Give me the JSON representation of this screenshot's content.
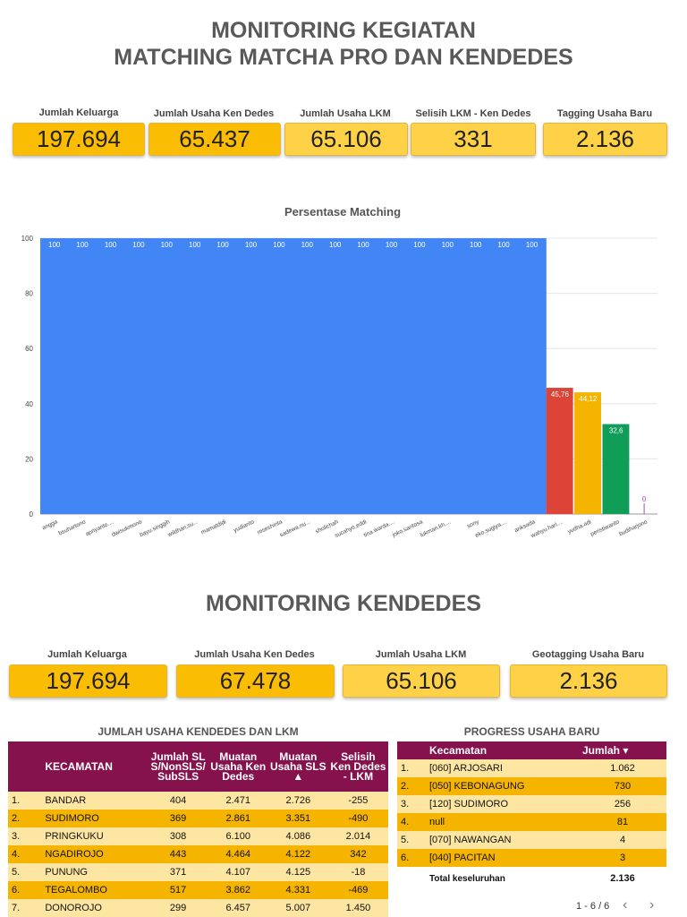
{
  "header": {
    "title_line1": "MONITORING KEGIATAN",
    "title_line2": "MATCHING MATCHA PRO DAN KENDEDES"
  },
  "kpis_top": [
    {
      "label": "Jumlah Keluarga",
      "value": "197.694"
    },
    {
      "label": "Jumlah Usaha Ken Dedes",
      "value": "65.437"
    },
    {
      "label": "Jumlah Usaha LKM",
      "value": "65.106"
    },
    {
      "label": "Selisih LKM - Ken Dedes",
      "value": "331"
    },
    {
      "label": "Tagging Usaha Baru",
      "value": "2.136"
    }
  ],
  "chart_data": {
    "type": "bar",
    "title": "Persentase Matching",
    "xlabel": "",
    "ylabel": "",
    "ylim": [
      0,
      100
    ],
    "yticks": [
      "0",
      "20",
      "40",
      "60",
      "80",
      "100"
    ],
    "categories": [
      "angga",
      "bsuhartono",
      "apriyanto....",
      "dwisukmono",
      "bayu.singgih",
      "wildhan.su...",
      "mamatdidi",
      "yudianto",
      "roseshinta",
      "sadewa.nu...",
      "sholichah",
      "sucahyo.eddi",
      "tina.warda....",
      "joko.santosa",
      "lukman.kh....",
      "sony",
      "eko.sugiya....",
      "anksada",
      "wahyu.hari....",
      "yudha.adi",
      "peristiwanto",
      "budiharjono"
    ],
    "values": [
      100,
      100,
      100,
      100,
      100,
      100,
      100,
      100,
      100,
      100,
      100,
      100,
      100,
      100,
      100,
      100,
      100,
      100,
      45.76,
      44.12,
      32.6,
      0
    ],
    "data_labels": [
      "100",
      "100",
      "100",
      "100",
      "100",
      "100",
      "100",
      "100",
      "100",
      "100",
      "100",
      "100",
      "100",
      "100",
      "100",
      "100",
      "100",
      "100",
      "45,76",
      "44,12",
      "32,6",
      "0"
    ],
    "colors": [
      "#4285f4",
      "#4285f4",
      "#4285f4",
      "#4285f4",
      "#4285f4",
      "#4285f4",
      "#4285f4",
      "#4285f4",
      "#4285f4",
      "#4285f4",
      "#4285f4",
      "#4285f4",
      "#4285f4",
      "#4285f4",
      "#4285f4",
      "#4285f4",
      "#4285f4",
      "#4285f4",
      "#db4437",
      "#f4b400",
      "#0f9d58",
      "#ab47bc"
    ]
  },
  "section2": {
    "title": "MONITORING KENDEDES"
  },
  "kpis_bottom": [
    {
      "label": "Jumlah Keluarga",
      "value": "197.694"
    },
    {
      "label": "Jumlah Usaha Ken Dedes",
      "value": "67.478"
    },
    {
      "label": "Jumlah Usaha LKM",
      "value": "65.106"
    },
    {
      "label": "Geotagging Usaha Baru",
      "value": "2.136"
    }
  ],
  "table_left": {
    "title": "JUMLAH USAHA KENDEDES DAN LKM",
    "headers": [
      "KECAMATAN",
      "Jumlah SLS/NonSLS/SubSLS",
      "Muatan Usaha Ken Dedes",
      "Muatan Usaha SLS ▲",
      "Selisih Ken Dedes - LKM"
    ],
    "rows": [
      [
        "1.",
        "BANDAR",
        "404",
        "2.471",
        "2.726",
        "-255"
      ],
      [
        "2.",
        "SUDIMORO",
        "369",
        "2.861",
        "3.351",
        "-490"
      ],
      [
        "3.",
        "PRINGKUKU",
        "308",
        "6.100",
        "4.086",
        "2.014"
      ],
      [
        "4.",
        "NGADIROJO",
        "443",
        "4.464",
        "4.122",
        "342"
      ],
      [
        "5.",
        "PUNUNG",
        "371",
        "4.107",
        "4.125",
        "-18"
      ],
      [
        "6.",
        "TEGALOMBO",
        "517",
        "3.862",
        "4.331",
        "-469"
      ],
      [
        "7.",
        "DONOROJO",
        "299",
        "6.457",
        "5.007",
        "1.450"
      ]
    ]
  },
  "table_right": {
    "title": "PROGRESS USAHA BARU",
    "headers": [
      "Kecamatan",
      "Jumlah ▾"
    ],
    "rows": [
      [
        "1.",
        "[060] ARJOSARI",
        "1.062"
      ],
      [
        "2.",
        "[050] KEBONAGUNG",
        "730"
      ],
      [
        "3.",
        "[120] SUDIMORO",
        "256"
      ],
      [
        "4.",
        "null",
        "81"
      ],
      [
        "5.",
        "[070] NAWANGAN",
        "4"
      ],
      [
        "6.",
        "[040] PACITAN",
        "3"
      ]
    ],
    "total_label": "Total keseluruhan",
    "total_value": "2.136",
    "pagination": "1 - 6 / 6"
  }
}
